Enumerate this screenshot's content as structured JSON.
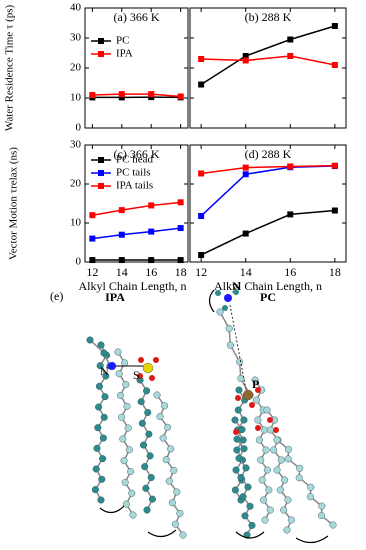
{
  "chart_data": [
    {
      "type": "line",
      "title": "(a) 366 K",
      "y_label": "Water Residence Time τ (ps)",
      "x": [
        12,
        14,
        16,
        18
      ],
      "xlim": [
        11.5,
        18.5
      ],
      "xticks": [
        12,
        14,
        16,
        18
      ],
      "xtick_labels": false,
      "ylim": [
        0,
        40
      ],
      "yticks": [
        0,
        10,
        20,
        30,
        40
      ],
      "ytick_labels": true,
      "legend": true,
      "legend_loc": "upper left",
      "series": [
        {
          "name": "PC",
          "color": "#000000",
          "values": [
            10.2,
            10.2,
            10.3,
            10.2
          ]
        },
        {
          "name": "IPA",
          "color": "#ff0000",
          "values": [
            11.0,
            11.3,
            11.3,
            10.5
          ]
        }
      ]
    },
    {
      "type": "line",
      "title": "(b) 288 K",
      "x": [
        12,
        14,
        16,
        18
      ],
      "xlim": [
        11.5,
        18.5
      ],
      "xticks": [
        12,
        14,
        16,
        18
      ],
      "xtick_labels": false,
      "ylim": [
        0,
        40
      ],
      "yticks": [
        0,
        10,
        20,
        30,
        40
      ],
      "ytick_labels": false,
      "legend": false,
      "series": [
        {
          "name": "PC",
          "color": "#000000",
          "values": [
            14.5,
            24,
            29.5,
            34
          ]
        },
        {
          "name": "IPA",
          "color": "#ff0000",
          "values": [
            23,
            22.5,
            24,
            21
          ]
        }
      ]
    },
    {
      "type": "line",
      "title": "(c) 366 K",
      "y_label": "Vector Motion τrelax (ns)",
      "x_label": "Alkyl Chain Length, n",
      "x": [
        12,
        14,
        16,
        18
      ],
      "xlim": [
        11.5,
        18.5
      ],
      "xticks": [
        12,
        14,
        16,
        18
      ],
      "xtick_labels": true,
      "ylim": [
        0,
        30
      ],
      "yticks": [
        0,
        10,
        20,
        30
      ],
      "ytick_labels": true,
      "legend": true,
      "legend_loc": "upper left",
      "series": [
        {
          "name": "PC head",
          "color": "#000000",
          "values": [
            0.5,
            0.5,
            0.5,
            0.5
          ]
        },
        {
          "name": "PC tails",
          "color": "#0000ff",
          "values": [
            6,
            7,
            7.8,
            8.7
          ]
        },
        {
          "name": "IPA tails",
          "color": "#ff0000",
          "values": [
            12,
            13.3,
            14.5,
            15.3
          ]
        }
      ]
    },
    {
      "type": "line",
      "title": "(d) 288 K",
      "x_label": "Alkyl Chain Length, n",
      "x": [
        12,
        14,
        16,
        18
      ],
      "xlim": [
        11.5,
        18.5
      ],
      "xticks": [
        12,
        14,
        16,
        18
      ],
      "xtick_labels": true,
      "ylim": [
        0,
        30
      ],
      "yticks": [
        0,
        10,
        20,
        30
      ],
      "ytick_labels": false,
      "legend": false,
      "series": [
        {
          "name": "PC head",
          "color": "#000000",
          "values": [
            1.8,
            7.3,
            12.2,
            13.2
          ]
        },
        {
          "name": "PC tails",
          "color": "#0000ff",
          "values": [
            11.8,
            22.5,
            24.3,
            24.6
          ]
        },
        {
          "name": "IPA tails",
          "color": "#ff0000",
          "values": [
            22.7,
            24.2,
            24.5,
            24.7
          ]
        }
      ]
    }
  ],
  "panel_e": {
    "label": "(e)",
    "molecules": [
      {
        "name": "IPA",
        "atoms": [
          "N",
          "S"
        ]
      },
      {
        "name": "PC",
        "atoms": [
          "N",
          "P"
        ]
      }
    ]
  }
}
